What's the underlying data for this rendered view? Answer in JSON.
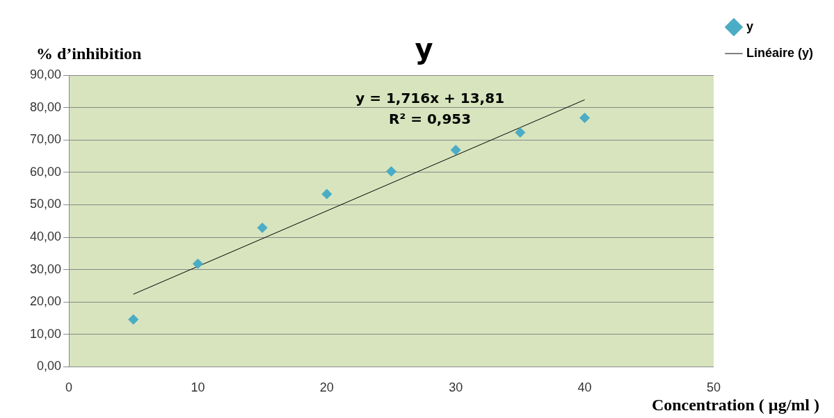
{
  "chart_data": {
    "type": "scatter",
    "title": "y",
    "ylabel": "% d’inhibition",
    "xlabel": "Concentration ( µg/ml )",
    "series": [
      {
        "name": "y",
        "type": "scatter",
        "marker": "diamond",
        "color": "#4bacc6",
        "x": [
          5,
          10,
          15,
          20,
          25,
          30,
          35,
          40
        ],
        "values": [
          14.6,
          31.8,
          42.9,
          53.3,
          60.3,
          66.9,
          72.3,
          76.8
        ]
      },
      {
        "name": "Linéaire (y)",
        "type": "line",
        "marker": "none",
        "color": "#000000",
        "x": [
          5,
          40
        ],
        "values": [
          22.4,
          82.4
        ]
      }
    ],
    "xlim": [
      0,
      50
    ],
    "xticks": [
      0,
      10,
      20,
      30,
      40,
      50
    ],
    "ylim": [
      0,
      90
    ],
    "yticks": [
      {
        "value": 0,
        "label": "0,00"
      },
      {
        "value": 10,
        "label": "10,00"
      },
      {
        "value": 20,
        "label": "20,00"
      },
      {
        "value": 30,
        "label": "30,00"
      },
      {
        "value": 40,
        "label": "40,00"
      },
      {
        "value": 50,
        "label": "50,00"
      },
      {
        "value": 60,
        "label": "60,00"
      },
      {
        "value": 70,
        "label": "70,00"
      },
      {
        "value": 80,
        "label": "80,00"
      },
      {
        "value": 90,
        "label": "90,00"
      }
    ],
    "annotations": [
      "y = 1,716x + 13,81",
      "R² = 0,953"
    ],
    "grid": "y",
    "legend": "top right"
  }
}
